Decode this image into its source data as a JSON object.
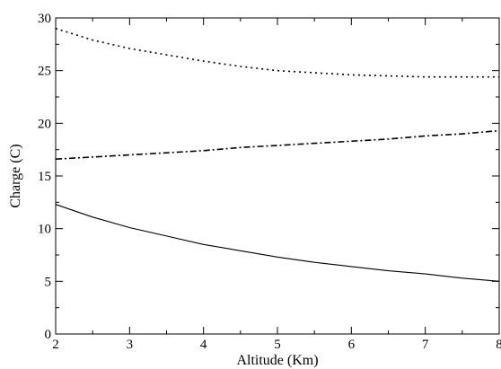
{
  "chart_data": {
    "type": "line",
    "title": "",
    "xlabel": "Altitude (Km)",
    "ylabel": "Charge (C)",
    "xlim": [
      2,
      8
    ],
    "ylim": [
      0,
      30
    ],
    "xticks": [
      "2",
      "3",
      "4",
      "5",
      "6",
      "7",
      "8"
    ],
    "yticks": [
      "0",
      "5",
      "10",
      "15",
      "20",
      "25",
      "30"
    ],
    "grid": false,
    "legend": "none",
    "series": [
      {
        "style": "dotted",
        "color": "#000000",
        "x": [
          2,
          2.5,
          3,
          3.5,
          4,
          4.5,
          5,
          5.5,
          6,
          6.5,
          7,
          7.5,
          8
        ],
        "y": [
          29.0,
          27.9,
          27.1,
          26.5,
          25.9,
          25.4,
          25.0,
          24.8,
          24.6,
          24.5,
          24.4,
          24.4,
          24.4
        ]
      },
      {
        "style": "dash-dot",
        "color": "#000000",
        "x": [
          2,
          2.5,
          3,
          3.5,
          4,
          4.5,
          5,
          5.5,
          6,
          6.5,
          7,
          7.5,
          8
        ],
        "y": [
          16.6,
          16.8,
          17.0,
          17.2,
          17.4,
          17.7,
          17.9,
          18.1,
          18.3,
          18.5,
          18.8,
          19.0,
          19.3
        ]
      },
      {
        "style": "solid",
        "color": "#000000",
        "x": [
          2,
          2.5,
          3,
          3.5,
          4,
          4.5,
          5,
          5.5,
          6,
          6.5,
          7,
          7.5,
          8
        ],
        "y": [
          12.3,
          11.1,
          10.1,
          9.3,
          8.5,
          7.9,
          7.3,
          6.8,
          6.4,
          6.0,
          5.7,
          5.3,
          5.0
        ]
      }
    ]
  }
}
